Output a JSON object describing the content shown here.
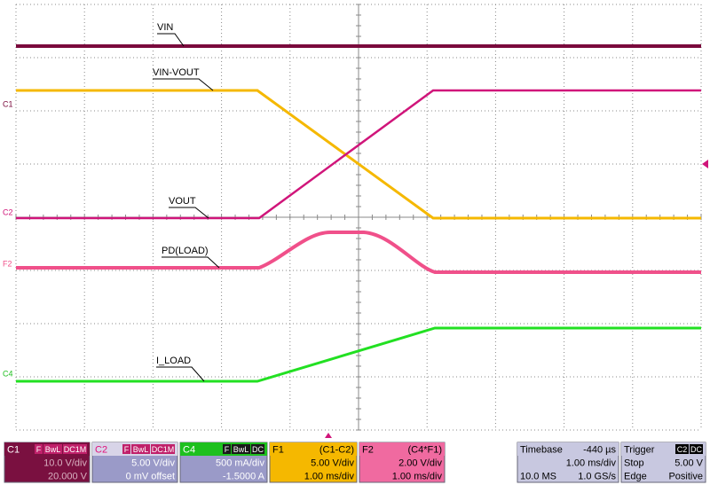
{
  "traces": [
    {
      "label": "VIN"
    },
    {
      "label": "VIN-VOUT"
    },
    {
      "label": "VOUT"
    },
    {
      "label": "PD(LOAD)"
    },
    {
      "label": "I_LOAD"
    }
  ],
  "markers": [
    "C1",
    "C2",
    "F2",
    "C4"
  ],
  "panels": [
    {
      "header": [
        "C1"
      ],
      "tags": [
        "F",
        "BwL",
        "DC1M"
      ],
      "rows": [
        [
          "10.0 V/div"
        ],
        [
          "20.000 V"
        ]
      ]
    },
    {
      "header": [
        "C2"
      ],
      "tags": [
        "F",
        "BwL",
        "DC1M"
      ],
      "rows": [
        [
          "5.00 V/div"
        ],
        [
          "0 mV offset"
        ]
      ]
    },
    {
      "header": [
        "C4"
      ],
      "tags": [
        "F",
        "BwL",
        "DC"
      ],
      "rows": [
        [
          "500 mA/div"
        ],
        [
          "-1.5000 A"
        ]
      ]
    },
    {
      "header": [
        "F1",
        "(C1-C2)"
      ],
      "rows": [
        [
          "5.00 V/div"
        ],
        [
          "1.00 ms/div"
        ]
      ]
    },
    {
      "header": [
        "F2",
        "(C4*F1)"
      ],
      "rows": [
        [
          "2.00 V/div"
        ],
        [
          "1.00 ms/div"
        ]
      ]
    },
    {
      "header": [
        "Timebase",
        "-440 µs"
      ],
      "rows": [
        [
          "1.00 ms/div"
        ],
        [
          "10.0 MS",
          "1.0 GS/s"
        ]
      ]
    },
    {
      "header": [
        "Trigger"
      ],
      "tags": [
        "C2",
        "DC"
      ],
      "rows": [
        [
          "Stop",
          "5.00 V"
        ],
        [
          "Edge",
          "Positive"
        ]
      ]
    }
  ]
}
